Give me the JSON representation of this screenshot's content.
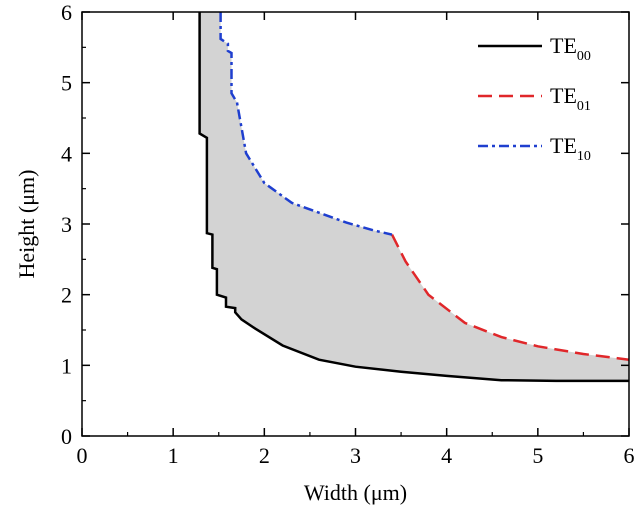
{
  "chart_data": {
    "type": "line",
    "title": "",
    "xlabel": "Width (μm)",
    "ylabel": "Height (μm)",
    "xlim": [
      0,
      6
    ],
    "ylim": [
      0,
      6
    ],
    "xticks": [
      0,
      1,
      2,
      3,
      4,
      5,
      6
    ],
    "yticks": [
      0,
      1,
      2,
      3,
      4,
      5,
      6
    ],
    "grid": false,
    "legend_position": "top-right",
    "fill_color": "#d3d3d3",
    "series": [
      {
        "name": "TE00",
        "legend_main": "TE",
        "legend_sub": "00",
        "color": "#000000",
        "dash": "solid",
        "x": [
          1.29,
          1.29,
          1.29,
          1.37,
          1.37,
          1.43,
          1.43,
          1.48,
          1.48,
          1.58,
          1.58,
          1.68,
          1.68,
          1.75,
          1.9,
          2.2,
          2.6,
          3.0,
          3.5,
          4.0,
          4.6,
          5.2,
          6.0
        ],
        "y": [
          6.0,
          5.0,
          4.28,
          4.22,
          2.87,
          2.85,
          2.38,
          2.36,
          2.0,
          1.96,
          1.83,
          1.81,
          1.75,
          1.65,
          1.52,
          1.28,
          1.08,
          0.98,
          0.91,
          0.85,
          0.79,
          0.78,
          0.78
        ]
      },
      {
        "name": "TE01",
        "legend_main": "TE",
        "legend_sub": "01",
        "color": "#e0272a",
        "dash": "long-dash",
        "x": [
          3.4,
          3.55,
          3.8,
          4.2,
          4.6,
          5.0,
          5.5,
          6.0
        ],
        "y": [
          2.85,
          2.47,
          2.0,
          1.6,
          1.4,
          1.27,
          1.16,
          1.08
        ]
      },
      {
        "name": "TE10",
        "legend_main": "TE",
        "legend_sub": "10",
        "color": "#1f3fcf",
        "dash": "dash-dot",
        "x": [
          1.52,
          1.52,
          1.6,
          1.6,
          1.64,
          1.64,
          1.7,
          1.8,
          2.0,
          2.3,
          2.6,
          2.9,
          3.2,
          3.4
        ],
        "y": [
          6.0,
          5.62,
          5.55,
          5.45,
          5.42,
          4.85,
          4.72,
          4.0,
          3.58,
          3.3,
          3.16,
          3.02,
          2.91,
          2.85
        ]
      }
    ]
  }
}
